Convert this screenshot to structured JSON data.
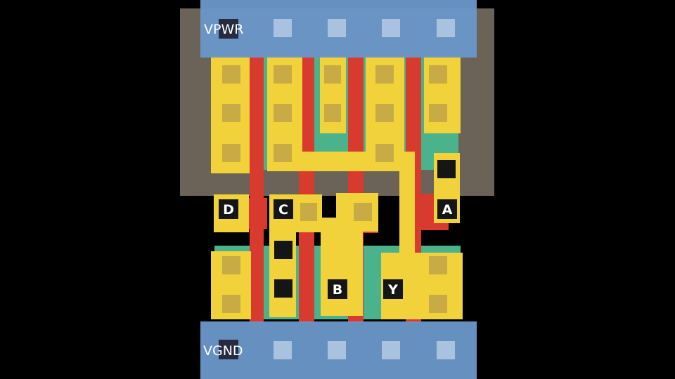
{
  "rails": {
    "power": "VPWR",
    "ground": "VGND"
  },
  "pins": {
    "a": "A",
    "b": "B",
    "c": "C",
    "d": "D",
    "y": "Y"
  },
  "colors": {
    "background": "#000000",
    "nwell": "#6b6258",
    "metal_rail": "#6a96c8",
    "rail_via": "#a9c2df",
    "poly": "#d93a2e",
    "diffusion": "#4bb38b",
    "local_interconnect": "#f1d23b",
    "contact": "#c9ab45",
    "pin_via": "#151515"
  }
}
